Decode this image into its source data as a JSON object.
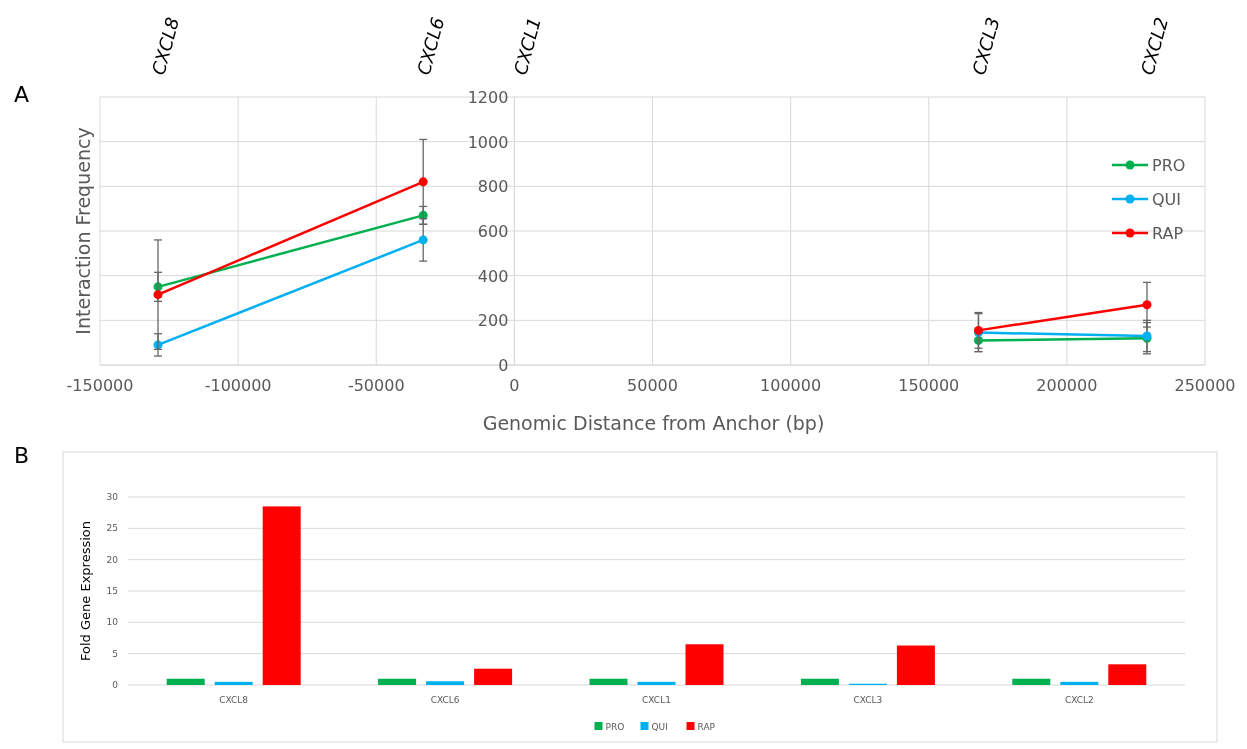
{
  "chart_data": [
    {
      "type": "line",
      "xlabel": "Genomic Distance from Anchor (bp)",
      "ylabel": "Interaction Frequency",
      "x": [
        -129000,
        -33000,
        2000,
        168000,
        229000
      ],
      "xlim": [
        -150000,
        250000
      ],
      "xticks": [
        -150000,
        -100000,
        -50000,
        0,
        50000,
        100000,
        150000,
        200000,
        250000
      ],
      "ylim": [
        0,
        1200
      ],
      "yticks": [
        0,
        200,
        400,
        600,
        800,
        1000,
        1200
      ],
      "grid": true,
      "legend": "right",
      "marker": "circle",
      "series": [
        {
          "name": "PRO",
          "color": "#00b050",
          "values": [
            350,
            670,
            null,
            110,
            120
          ],
          "errors": [
            65,
            40,
            null,
            50,
            70
          ]
        },
        {
          "name": "QUI",
          "color": "#00b0f0",
          "values": [
            90,
            560,
            null,
            145,
            130
          ],
          "errors": [
            50,
            95,
            null,
            85,
            70
          ]
        },
        {
          "name": "RAP",
          "color": "#ff0000",
          "values": [
            315,
            820,
            null,
            155,
            270
          ],
          "errors": [
            245,
            190,
            null,
            80,
            100
          ]
        }
      ],
      "annotations": [
        "A",
        "CXCL8",
        "CXCL6",
        "CXCL1",
        "CXCL3",
        "CXCL2"
      ]
    },
    {
      "type": "bar",
      "ylabel": "Fold Gene Expression",
      "categories": [
        "CXCL8",
        "CXCL6",
        "CXCL1",
        "CXCL3",
        "CXCL2"
      ],
      "ylim": [
        0,
        30
      ],
      "yticks": [
        0,
        5,
        10,
        15,
        20,
        25,
        30
      ],
      "grid": "y",
      "legend": "bottom",
      "series": [
        {
          "name": "PRO",
          "color": "#00b050",
          "values": [
            1,
            1,
            1,
            1,
            1
          ]
        },
        {
          "name": "QUI",
          "color": "#00b0f0",
          "values": [
            0.5,
            0.6,
            0.5,
            0.2,
            0.5
          ]
        },
        {
          "name": "RAP",
          "color": "#ff0000",
          "values": [
            28.5,
            2.6,
            6.5,
            6.3,
            3.3
          ]
        }
      ],
      "annotations": [
        "B"
      ]
    }
  ]
}
